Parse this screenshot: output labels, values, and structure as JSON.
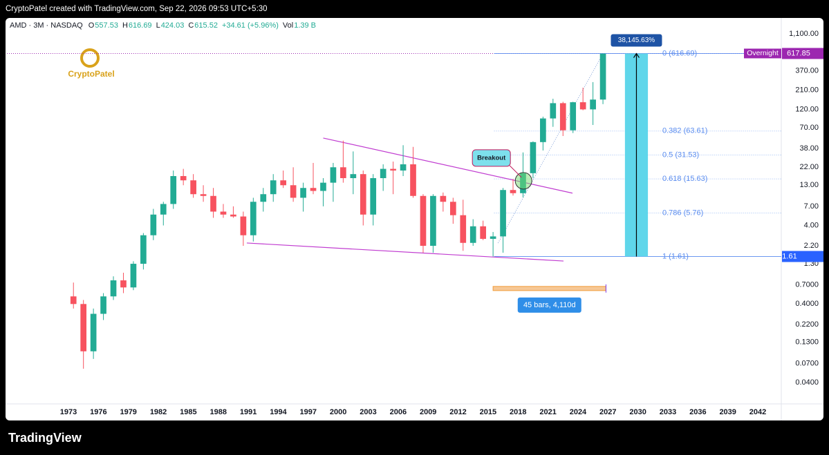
{
  "header": {
    "credit": "CryptoPatel created with TradingView.com, Sep 22, 2026 09:53 UTC+5:30",
    "logo": "CryptoPatel",
    "footer": "TradingView"
  },
  "chart_data": {
    "type": "candlestick",
    "symbol": "AMD · 3M · NASDAQ",
    "legend": [
      {
        "label": "O",
        "value": "557.53"
      },
      {
        "label": "H",
        "value": "616.69"
      },
      {
        "label": "L",
        "value": "424.03"
      },
      {
        "label": "C",
        "value": "615.52"
      }
    ],
    "change": "+34.61 (+5.96%)",
    "volume": {
      "label": "Vol",
      "value": "1.39 B"
    },
    "log_scale": true,
    "up_color": "#22ab94",
    "down_color": "#f7525f",
    "xlim": [
      1966.84,
      2044.35
    ],
    "ylim": [
      0.0214,
      1750
    ],
    "xticks": [
      1973,
      1976,
      1979,
      1982,
      1985,
      1988,
      1991,
      1994,
      1997,
      2000,
      2003,
      2006,
      2009,
      2012,
      2015,
      2018,
      2021,
      2024,
      2027,
      2030,
      2033,
      2036,
      2039,
      2042
    ],
    "yticks": [
      {
        "value": 1100,
        "label": "1,100.00"
      },
      {
        "value": 370,
        "label": "370.00"
      },
      {
        "value": 210,
        "label": "210.00"
      },
      {
        "value": 120,
        "label": "120.00"
      },
      {
        "value": 70,
        "label": "70.00"
      },
      {
        "value": 38,
        "label": "38.00"
      },
      {
        "value": 22,
        "label": "22.00"
      },
      {
        "value": 13,
        "label": "13.00"
      },
      {
        "value": 7,
        "label": "7.00"
      },
      {
        "value": 4,
        "label": "4.00"
      },
      {
        "value": 2.2,
        "label": "2.20"
      },
      {
        "value": 1.3,
        "label": "1.30"
      },
      {
        "value": 0.7,
        "label": "0.7000"
      },
      {
        "value": 0.4,
        "label": "0.4000"
      },
      {
        "value": 0.22,
        "label": "0.2200"
      },
      {
        "value": 0.13,
        "label": "0.1300"
      },
      {
        "value": 0.07,
        "label": "0.0700"
      },
      {
        "value": 0.04,
        "label": "0.0400"
      }
    ],
    "x": [
      1973.5,
      1974.5,
      1975.5,
      1976.5,
      1977.5,
      1978.5,
      1979.5,
      1980.5,
      1981.5,
      1982.5,
      1983.5,
      1984.5,
      1985.5,
      1986.5,
      1987.5,
      1988.5,
      1989.5,
      1990.5,
      1991.5,
      1992.5,
      1993.5,
      1994.5,
      1995.5,
      1996.5,
      1997.5,
      1998.5,
      1999.5,
      2000.5,
      2001.5,
      2002.5,
      2003.5,
      2004.5,
      2005.5,
      2006.5,
      2007.5,
      2008.5,
      2009.5,
      2010.5,
      2011.5,
      2012.5,
      2013.5,
      2014.5,
      2015.5,
      2016.5,
      2017.5,
      2018.5,
      2019.5,
      2020.5,
      2021.5,
      2022.5,
      2023.5,
      2024.5,
      2025.5,
      2026.5
    ],
    "open": [
      0.5,
      0.4,
      0.1,
      0.3,
      0.5,
      0.8,
      0.65,
      1.3,
      3,
      5.5,
      7.5,
      17,
      15,
      10,
      9.5,
      6,
      5.5,
      5.2,
      3,
      8,
      10,
      15,
      13,
      9,
      12,
      11,
      14,
      22,
      16,
      18,
      5.5,
      16,
      21,
      20,
      24,
      9.5,
      2.2,
      9.5,
      8,
      5.4,
      2.4,
      3.9,
      2.7,
      2.9,
      11.3,
      10.3,
      18.5,
      46,
      92,
      144,
      65,
      148,
      120,
      160
    ],
    "high": [
      0.75,
      0.45,
      0.35,
      0.55,
      0.9,
      1,
      1.4,
      3.2,
      6.5,
      8,
      20,
      21,
      18,
      13,
      12,
      7.5,
      7,
      6,
      9,
      12,
      18,
      20,
      22,
      14,
      25,
      16,
      25,
      48,
      35,
      20,
      18,
      24,
      26,
      42,
      40,
      10,
      10,
      10.5,
      9,
      8.5,
      4.8,
      4.6,
      3.3,
      12,
      15.6,
      34,
      47,
      97,
      164,
      150,
      150,
      227,
      267,
      616.69
    ],
    "low": [
      0.35,
      0.06,
      0.08,
      0.25,
      0.45,
      0.55,
      0.6,
      1.1,
      2.6,
      4,
      6.5,
      13,
      9,
      8,
      5,
      5,
      5,
      2.2,
      2.5,
      6,
      8,
      12,
      8,
      6,
      10,
      7,
      8,
      14,
      10,
      4,
      4,
      11,
      10,
      17,
      9,
      1.8,
      1.8,
      6,
      4.2,
      1.9,
      2.2,
      2.6,
      1.61,
      1.8,
      9.6,
      9.1,
      16,
      36,
      72,
      55,
      60,
      117,
      76,
      140
    ],
    "close": [
      0.4,
      0.1,
      0.3,
      0.5,
      0.8,
      0.65,
      1.3,
      3,
      5.5,
      7.5,
      17,
      15,
      10,
      9.5,
      6,
      5.5,
      5.2,
      3,
      8,
      10,
      15,
      13,
      9,
      12,
      11,
      14,
      22,
      16,
      18,
      5.5,
      16,
      21,
      20,
      24,
      9.5,
      2.2,
      9.5,
      8,
      5.4,
      2.4,
      3.9,
      2.7,
      2.9,
      11.3,
      10.3,
      18.5,
      46,
      92,
      144,
      65,
      148,
      120,
      160,
      615.52
    ],
    "trendlines": [
      {
        "x": [
          1998.5,
          2023.45
        ],
        "y": [
          51.8,
          10.3
        ],
        "color": "#c03bd0"
      },
      {
        "x": [
          1990.85,
          2022.55
        ],
        "y": [
          2.39,
          1.41
        ],
        "color": "#c03bd0"
      },
      {
        "x": [
          2016.0,
          2026.5
        ],
        "y": [
          2.39,
          617
        ],
        "color": "#7b9cd6"
      }
    ],
    "fib": {
      "x_start": 2015.6,
      "color": "#5b8def",
      "levels": [
        {
          "value": 616.69,
          "label": "0 (616.69)"
        },
        {
          "value": 63.61,
          "label": "0.382 (63.61)"
        },
        {
          "value": 31.53,
          "label": "0.5 (31.53)"
        },
        {
          "value": 15.63,
          "label": "0.618 (15.63)"
        },
        {
          "value": 5.76,
          "label": "0.786 (5.76)"
        },
        {
          "value": 1.61,
          "label": "1 (1.61)"
        }
      ]
    },
    "price_line": {
      "value": 617.85,
      "label": "617.85",
      "tag": "Overnight",
      "color": "#9c27b0"
    },
    "support_label": {
      "value": 1.61,
      "label": "1.61",
      "color": "#2962ff"
    },
    "measure": {
      "x": [
        2028.7,
        2031.0
      ],
      "y": [
        1.61,
        616.69
      ],
      "label": "38,145.63%",
      "color": "#5fd6ea"
    },
    "date_range": {
      "x": [
        2015.5,
        2026.8
      ],
      "y": 0.63,
      "label": "45 bars, 4,110d"
    },
    "breakout": {
      "x": 2018.55,
      "y": 14.8,
      "label": "Breakout"
    }
  }
}
